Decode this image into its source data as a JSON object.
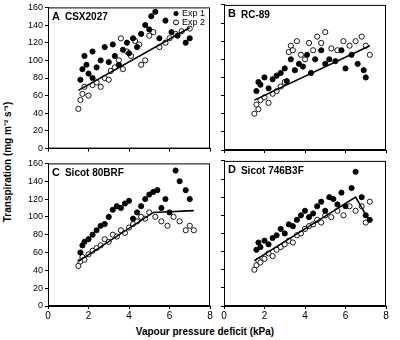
{
  "ylabel": "Transpiration (mg m⁻² s⁻¹)",
  "xlabel": "Vapour pressure deficit (kPa)",
  "chart_data": [
    {
      "type": "scatter",
      "panel_label": "A",
      "title": "CSX2027",
      "xlim": [
        0,
        8
      ],
      "xticks": [
        0,
        2,
        4,
        6,
        8
      ],
      "ylim": [
        0,
        160
      ],
      "yticks": [
        0,
        20,
        40,
        60,
        80,
        100,
        120,
        140,
        160
      ],
      "grid": false,
      "tick_labels": "y",
      "legend": "upper right",
      "series": [
        {
          "name": "Exp 1",
          "color": "#000000",
          "marker": "circle",
          "x": [
            1.6,
            1.7,
            1.8,
            1.9,
            2.0,
            2.2,
            2.2,
            2.4,
            2.6,
            2.8,
            3.0,
            3.2,
            3.3,
            3.5,
            3.7,
            3.9,
            4.0,
            4.2,
            4.4,
            4.6,
            4.8,
            5.0,
            5.1,
            5.3,
            5.5,
            5.8,
            6.1,
            6.4,
            6.8,
            7.0
          ],
          "values": [
            78,
            90,
            105,
            95,
            85,
            110,
            80,
            92,
            100,
            115,
            98,
            118,
            105,
            95,
            112,
            120,
            108,
            125,
            115,
            130,
            140,
            135,
            150,
            155,
            125,
            145,
            132,
            128,
            120,
            125
          ]
        },
        {
          "name": "Exp 2",
          "color": "#000000",
          "marker": "open_circle",
          "x": [
            1.5,
            1.6,
            1.7,
            1.8,
            2.0,
            2.2,
            2.4,
            2.6,
            2.8,
            3.0,
            3.1,
            3.3,
            3.5,
            3.6,
            3.7,
            3.9,
            4.1,
            4.3,
            4.5,
            4.6,
            4.8,
            5.0,
            5.2,
            5.5,
            5.8,
            6.0,
            6.3,
            6.6,
            7.0
          ],
          "values": [
            45,
            55,
            62,
            70,
            60,
            72,
            75,
            70,
            80,
            78,
            88,
            92,
            100,
            125,
            90,
            110,
            105,
            122,
            118,
            95,
            100,
            128,
            132,
            115,
            120,
            125,
            130,
            133,
            136
          ]
        },
        {
          "type": "line",
          "color": "#000000",
          "marker": "none",
          "line_style": "solid",
          "x": [
            1.5,
            7.0
          ],
          "values": [
            66,
            137
          ]
        }
      ]
    },
    {
      "type": "scatter",
      "panel_label": "B",
      "title": "RC-89",
      "xlim": [
        0,
        8
      ],
      "xticks": [
        0,
        2,
        4,
        6,
        8
      ],
      "ylim": [
        0,
        160
      ],
      "yticks": [
        0,
        20,
        40,
        60,
        80,
        100,
        120,
        140,
        160
      ],
      "grid": false,
      "tick_labels": false,
      "series": [
        {
          "name": "Exp 1",
          "color": "#000000",
          "marker": "circle",
          "x": [
            1.6,
            1.7,
            1.8,
            2.0,
            2.2,
            2.4,
            2.6,
            2.8,
            3.0,
            3.1,
            3.3,
            3.5,
            3.7,
            3.9,
            4.1,
            4.3,
            4.5,
            4.8,
            5.0,
            5.2,
            5.5,
            5.8,
            6.0,
            6.3,
            6.6,
            6.9,
            7.0
          ],
          "values": [
            65,
            75,
            72,
            80,
            68,
            78,
            82,
            85,
            90,
            76,
            100,
            88,
            95,
            92,
            105,
            85,
            100,
            110,
            95,
            100,
            98,
            110,
            90,
            105,
            95,
            88,
            80
          ]
        },
        {
          "name": "Exp 2",
          "color": "#000000",
          "marker": "open_circle",
          "x": [
            1.5,
            1.6,
            1.7,
            1.8,
            2.0,
            2.2,
            2.4,
            2.6,
            2.8,
            3.0,
            3.2,
            3.3,
            3.4,
            3.6,
            3.8,
            4.0,
            4.2,
            4.4,
            4.6,
            4.8,
            5.0,
            5.3,
            5.6,
            5.9,
            6.2,
            6.5,
            6.8,
            7.0,
            7.2
          ],
          "values": [
            40,
            50,
            45,
            55,
            58,
            52,
            62,
            65,
            70,
            75,
            108,
            115,
            110,
            120,
            105,
            100,
            118,
            110,
            125,
            118,
            130,
            112,
            110,
            120,
            115,
            120,
            125,
            115,
            105
          ]
        },
        {
          "type": "line",
          "color": "#000000",
          "marker": "none",
          "line_style": "solid",
          "x": [
            1.5,
            7.2
          ],
          "values": [
            55,
            115
          ]
        }
      ]
    },
    {
      "type": "scatter",
      "panel_label": "C",
      "title": "Sicot 80BRF",
      "xlim": [
        0,
        8
      ],
      "xticks": [
        0,
        2,
        4,
        6,
        8
      ],
      "ylim": [
        0,
        160
      ],
      "yticks": [
        0,
        20,
        40,
        60,
        80,
        100,
        120,
        140,
        160
      ],
      "grid": false,
      "tick_labels": true,
      "series": [
        {
          "name": "Exp 1",
          "color": "#000000",
          "marker": "circle",
          "x": [
            1.6,
            1.7,
            1.8,
            2.0,
            2.2,
            2.4,
            2.6,
            2.8,
            3.0,
            3.2,
            3.4,
            3.6,
            3.8,
            4.0,
            4.2,
            4.4,
            4.6,
            4.8,
            5.0,
            5.2,
            5.4,
            5.6,
            5.8,
            6.0,
            6.3,
            6.5,
            6.8,
            7.0
          ],
          "values": [
            60,
            68,
            72,
            75,
            80,
            85,
            90,
            92,
            100,
            108,
            112,
            110,
            115,
            118,
            98,
            105,
            112,
            120,
            125,
            128,
            130,
            110,
            120,
            105,
            152,
            140,
            130,
            120
          ]
        },
        {
          "name": "Exp 2",
          "color": "#000000",
          "marker": "open_circle",
          "x": [
            1.5,
            1.6,
            1.7,
            1.8,
            2.0,
            2.2,
            2.4,
            2.6,
            2.8,
            3.0,
            3.2,
            3.4,
            3.6,
            3.8,
            4.0,
            4.2,
            4.4,
            4.6,
            4.8,
            5.0,
            5.3,
            5.6,
            5.9,
            6.2,
            6.5,
            6.8,
            7.0,
            7.2
          ],
          "values": [
            45,
            50,
            55,
            52,
            58,
            62,
            65,
            68,
            75,
            72,
            80,
            78,
            85,
            82,
            88,
            92,
            95,
            100,
            98,
            105,
            100,
            95,
            90,
            100,
            95,
            85,
            90,
            85
          ]
        },
        {
          "type": "line",
          "color": "#000000",
          "marker": "none",
          "line_style": "solid",
          "x": [
            1.5,
            5.2,
            7.2
          ],
          "values": [
            50,
            105,
            107
          ]
        }
      ]
    },
    {
      "type": "scatter",
      "panel_label": "D",
      "title": "Sicot 746B3F",
      "xlim": [
        0,
        8
      ],
      "xticks": [
        0,
        2,
        4,
        6,
        8
      ],
      "ylim": [
        0,
        160
      ],
      "yticks": [
        0,
        20,
        40,
        60,
        80,
        100,
        120,
        140,
        160
      ],
      "grid": false,
      "tick_labels": "x",
      "series": [
        {
          "name": "Exp 1",
          "color": "#000000",
          "marker": "circle",
          "x": [
            1.6,
            1.7,
            1.8,
            2.0,
            2.2,
            2.4,
            2.6,
            2.8,
            3.0,
            3.2,
            3.4,
            3.6,
            3.8,
            4.0,
            4.2,
            4.4,
            4.6,
            4.8,
            5.0,
            5.2,
            5.4,
            5.6,
            5.8,
            6.0,
            6.3,
            6.5,
            6.8,
            7.0,
            7.2
          ],
          "values": [
            62,
            70,
            65,
            72,
            68,
            75,
            78,
            85,
            80,
            90,
            88,
            95,
            100,
            105,
            98,
            102,
            110,
            115,
            105,
            120,
            118,
            112,
            125,
            110,
            130,
            148,
            120,
            100,
            95
          ]
        },
        {
          "name": "Exp 2",
          "color": "#000000",
          "marker": "open_circle",
          "x": [
            1.5,
            1.6,
            1.7,
            1.8,
            2.0,
            2.2,
            2.4,
            2.6,
            2.8,
            3.0,
            3.2,
            3.4,
            3.6,
            3.8,
            4.0,
            4.2,
            4.4,
            4.6,
            4.8,
            5.0,
            5.3,
            5.6,
            5.9,
            6.2,
            6.5,
            6.8,
            7.0,
            7.2
          ],
          "values": [
            40,
            45,
            50,
            48,
            52,
            58,
            55,
            62,
            65,
            68,
            72,
            70,
            78,
            80,
            85,
            88,
            90,
            95,
            92,
            100,
            98,
            105,
            100,
            110,
            105,
            110,
            92,
            115
          ]
        },
        {
          "type": "line",
          "color": "#000000",
          "marker": "none",
          "line_style": "solid",
          "x": [
            1.5,
            6.5,
            7.2
          ],
          "values": [
            50,
            120,
            93
          ]
        }
      ]
    }
  ]
}
